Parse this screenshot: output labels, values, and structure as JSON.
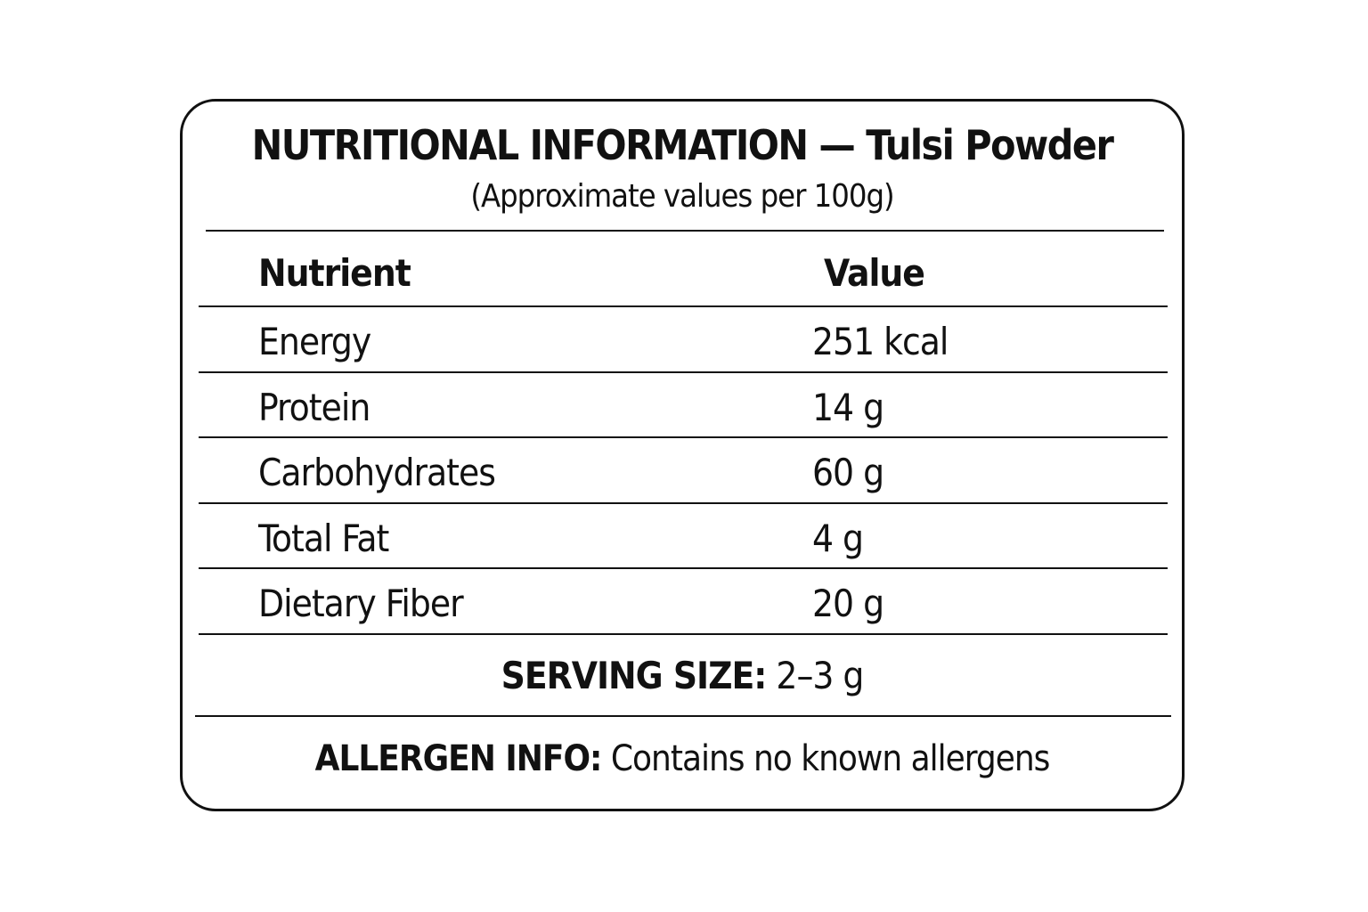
{
  "header": {
    "title": "NUTRITIONAL INFORMATION",
    "product": "Tulsi Powder",
    "subtitle": "(Approximate values per 100g)"
  },
  "table": {
    "columns": [
      "Nutrient",
      "Value"
    ],
    "rows": [
      [
        "Energy",
        "251 kcal"
      ],
      [
        "Protein",
        "14 g"
      ],
      [
        "Carbohydrates",
        "60 g"
      ],
      [
        "Total Fat",
        "4 g"
      ],
      [
        "Dietary Fiber",
        "20 g"
      ]
    ]
  },
  "serving": {
    "label": "SERVING SIZE:",
    "value": "2–3 g"
  },
  "allergen": {
    "label": "ALLERGEN INFO:",
    "value": "Contains no known allergens"
  }
}
